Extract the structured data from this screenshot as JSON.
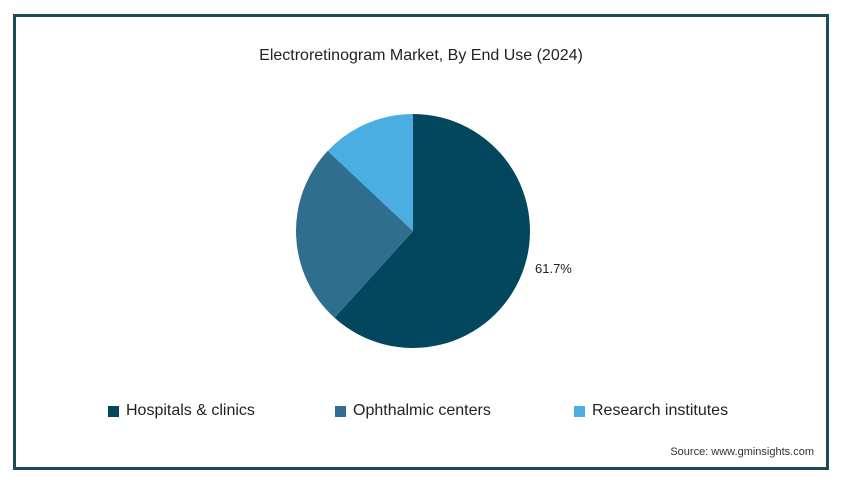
{
  "chart_data": {
    "type": "pie",
    "title": "Electroretinogram Market, By End Use (2024)",
    "slices": [
      {
        "label": "Hospitals & clinics",
        "value": 61.7,
        "color": "#02475e",
        "data_label": "61.7%"
      },
      {
        "label": "Ophthalmic centers",
        "value": 25.3,
        "color": "#2f6e8e",
        "data_label": ""
      },
      {
        "label": "Research institutes",
        "value": 13.0,
        "color": "#4aaee3",
        "data_label": ""
      }
    ],
    "legend_position": "bottom"
  },
  "source": "Source: www.gminsights.com"
}
